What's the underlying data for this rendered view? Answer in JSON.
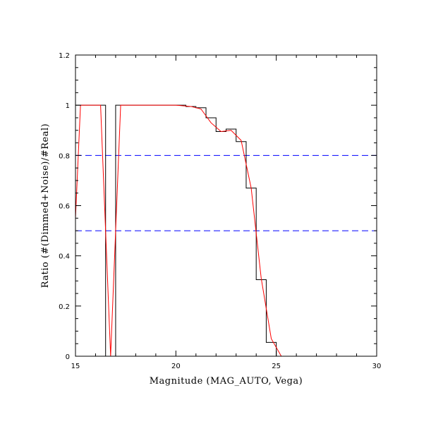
{
  "chart_data": {
    "type": "line",
    "title": "",
    "xlabel": "Magnitude (MAG_AUTO, Vega)",
    "ylabel": "Ratio (#(Dimmed+Noise)/#Real)",
    "xlim": [
      15,
      30
    ],
    "ylim": [
      0,
      1.2
    ],
    "x_ticks": [
      15,
      20,
      25,
      30
    ],
    "x_minor_step": 1,
    "y_ticks": [
      0,
      0.2,
      0.4,
      0.6,
      0.8,
      1,
      1.2
    ],
    "y_minor_step": 0.05,
    "grid": false,
    "colors": {
      "histogram": "#000000",
      "fit": "#ff0000",
      "reference": "#0000ff",
      "axes": "#000000"
    },
    "reference_lines": [
      {
        "y": 0.8,
        "style": "dashed",
        "color": "#0000ff"
      },
      {
        "y": 0.5,
        "style": "dashed",
        "color": "#0000ff"
      }
    ],
    "series": [
      {
        "style": "step",
        "color": "#000000",
        "bin_edges": [
          15,
          15.5,
          16,
          16.5,
          17,
          17.5,
          18,
          18.5,
          19,
          19.5,
          20,
          20.5,
          21,
          21.5,
          22,
          22.5,
          23,
          23.5,
          24,
          24.5,
          25,
          25.5,
          26,
          26.5,
          27,
          27.5,
          28,
          28.5,
          29,
          29.5,
          30
        ],
        "values": [
          1,
          1,
          1,
          0,
          1,
          1,
          1,
          1,
          1,
          1,
          1,
          0.995,
          0.99,
          0.95,
          0.895,
          0.905,
          0.855,
          0.67,
          0.305,
          0.055,
          0,
          0,
          0,
          0,
          0,
          0,
          0,
          0,
          0,
          0
        ]
      },
      {
        "style": "line",
        "color": "#ff0000",
        "x": [
          15,
          15.25,
          16.25,
          16.5,
          16.75,
          17,
          17.25,
          20,
          20.75,
          21.25,
          21.75,
          22.25,
          22.75,
          23.25,
          23.75,
          24.25,
          24.75,
          25.25,
          30
        ],
        "y": [
          0.55,
          1,
          1,
          0.5,
          0,
          0.5,
          1,
          1,
          0.995,
          0.985,
          0.93,
          0.895,
          0.9,
          0.86,
          0.67,
          0.31,
          0.07,
          0,
          0
        ]
      }
    ]
  }
}
